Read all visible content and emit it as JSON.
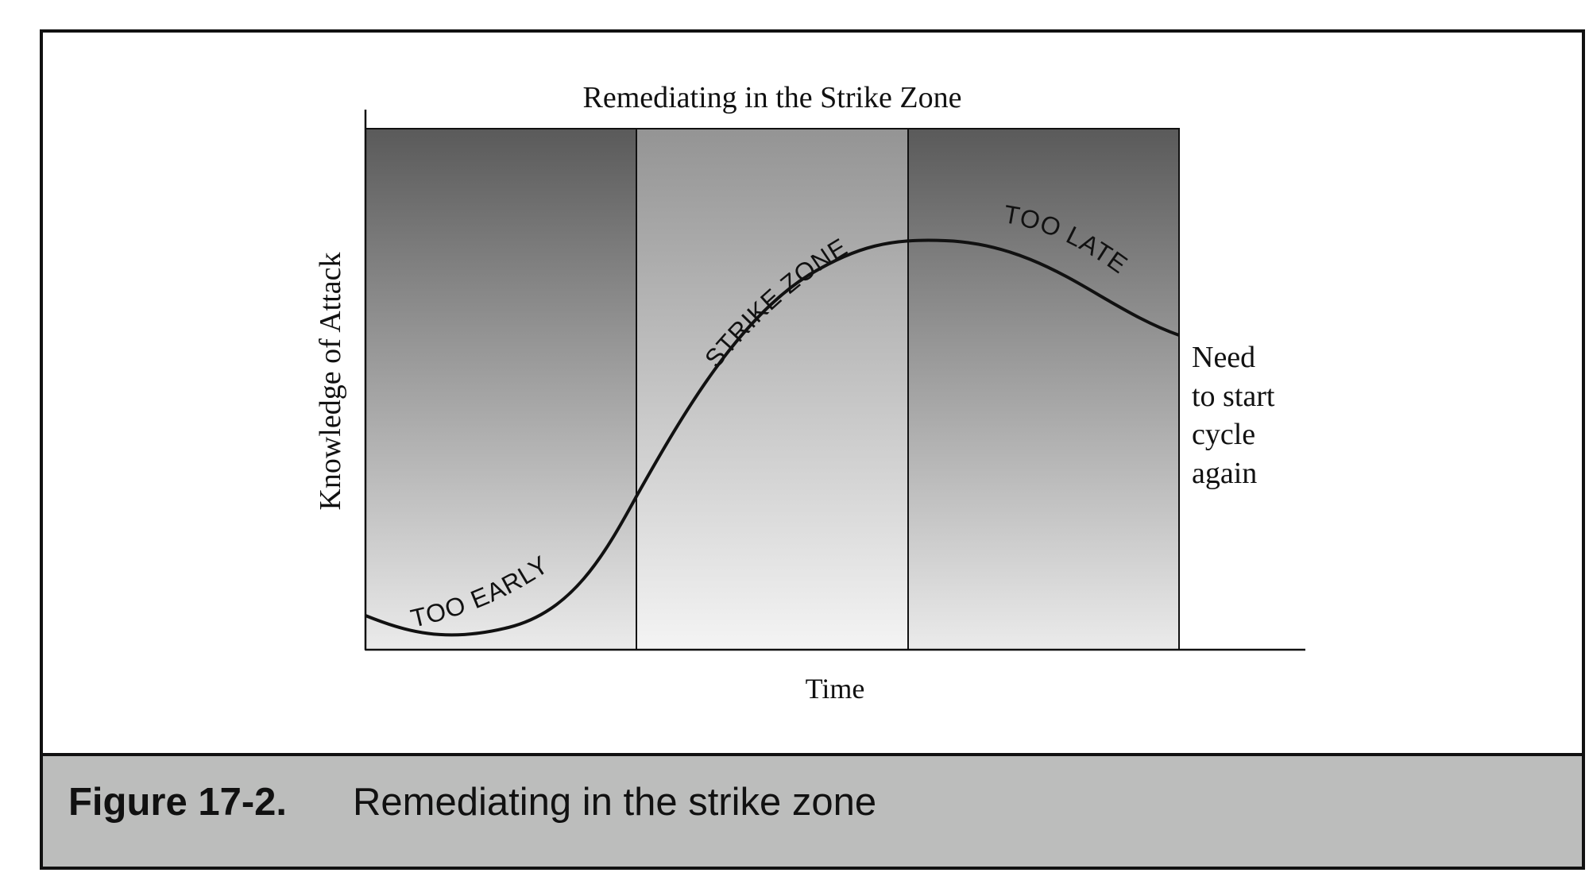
{
  "diagram": {
    "title": "Remediating in the Strike Zone",
    "x_axis_label": "Time",
    "y_axis_label": "Knowledge of Attack",
    "zones": [
      {
        "label": "TOO EARLY",
        "shade": "dark"
      },
      {
        "label": "STRIKE ZONE",
        "shade": "light"
      },
      {
        "label": "TOO LATE",
        "shade": "dark"
      }
    ],
    "end_note": [
      "Need",
      "to start",
      "cycle",
      "again"
    ]
  },
  "caption": {
    "number": "Figure 17-2.",
    "text": "Remediating in the strike zone"
  },
  "colors": {
    "caption_bar": "#bcbdbc",
    "zone_dark_top": "#5a5a5a",
    "zone_dark_bottom": "#ebebeb",
    "zone_light_top": "#949494",
    "zone_light_bottom": "#f4f4f4",
    "stroke": "#111111"
  }
}
